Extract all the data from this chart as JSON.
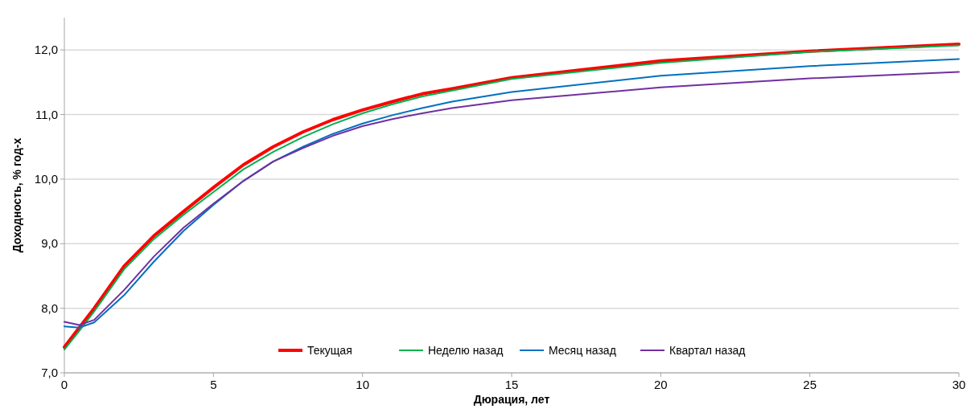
{
  "chart_data": {
    "type": "line",
    "xlabel": "Дюрация, лет",
    "ylabel": "Доходность, % год-х",
    "xlim": [
      0,
      30
    ],
    "xticks": [
      0,
      5,
      10,
      15,
      20,
      25,
      30
    ],
    "ylim": [
      7,
      12.5
    ],
    "yticks": [
      {
        "value": 7,
        "label": "7,0"
      },
      {
        "value": 8,
        "label": "8,0"
      },
      {
        "value": 9,
        "label": "9,0"
      },
      {
        "value": 10,
        "label": "10,0"
      },
      {
        "value": 11,
        "label": "11,0"
      },
      {
        "value": 12,
        "label": "12,0"
      }
    ],
    "grid": "y",
    "legend": "bottom",
    "marker": "none",
    "line_style": "solid",
    "x": [
      0,
      0.5,
      1,
      2,
      3,
      4,
      5,
      6,
      7,
      8,
      9,
      10,
      11,
      12,
      13,
      15,
      20,
      25,
      30
    ],
    "series": [
      {
        "name": "Текущая",
        "color": "#ff0000",
        "values": [
          7.4,
          7.7,
          8.0,
          8.65,
          9.12,
          9.5,
          9.87,
          10.22,
          10.5,
          10.73,
          10.92,
          11.07,
          11.2,
          11.32,
          11.4,
          11.57,
          11.83,
          11.98,
          12.09
        ]
      },
      {
        "name": "Неделю назад",
        "color": "#00b050",
        "values": [
          7.36,
          7.65,
          7.95,
          8.6,
          9.07,
          9.45,
          9.8,
          10.15,
          10.42,
          10.65,
          10.85,
          11.02,
          11.16,
          11.28,
          11.37,
          11.55,
          11.8,
          11.97,
          12.07
        ]
      },
      {
        "name": "Месяц назад",
        "color": "#0070c0",
        "values": [
          7.72,
          7.7,
          7.78,
          8.2,
          8.72,
          9.2,
          9.6,
          9.97,
          10.27,
          10.5,
          10.7,
          10.86,
          10.99,
          11.1,
          11.2,
          11.35,
          11.6,
          11.75,
          11.86
        ]
      },
      {
        "name": "Квартал назад",
        "color": "#7030a0",
        "values": [
          7.79,
          7.74,
          7.82,
          8.28,
          8.8,
          9.25,
          9.62,
          9.97,
          10.27,
          10.48,
          10.67,
          10.82,
          10.93,
          11.02,
          11.1,
          11.22,
          11.42,
          11.56,
          11.66
        ]
      }
    ]
  }
}
